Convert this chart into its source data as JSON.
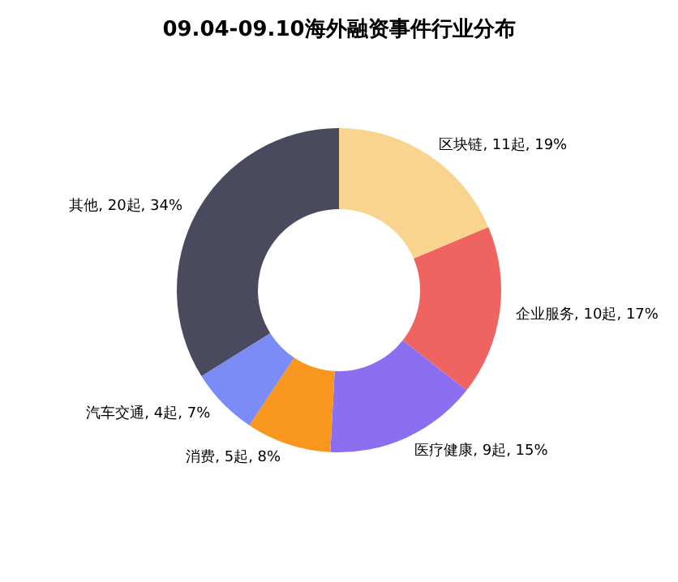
{
  "chart_data": {
    "type": "donut",
    "title": "09.04-09.10海外融资事件行业分布",
    "categories": [
      "区块链",
      "企业服务",
      "医疗健康",
      "消费",
      "汽车交通",
      "其他"
    ],
    "values": [
      11,
      10,
      9,
      5,
      4,
      20
    ],
    "value_labels": [
      "11起, 19%",
      "10起, 17%",
      "9起, 15%",
      "5起, 8%",
      "4起, 7%",
      "20起, 34%"
    ],
    "colors": [
      "#f9d48e",
      "#ef6461",
      "#8c6ff0",
      "#f9961e",
      "#7b8cf7",
      "#4a4a5e"
    ],
    "legend": false
  }
}
